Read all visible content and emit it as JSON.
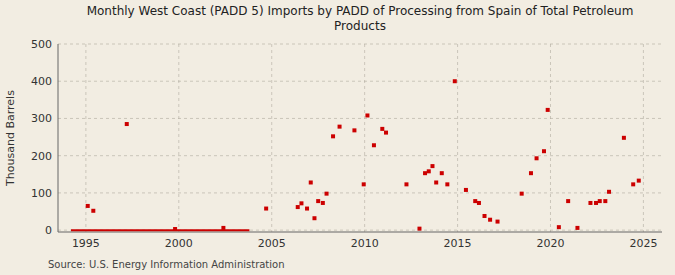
{
  "chart_data": {
    "type": "scatter",
    "title": "Monthly West Coast (PADD 5) Imports by PADD of Processing from Spain of Total Petroleum\nProducts",
    "ylabel": "Thousand Barrels",
    "annotations": [
      "Source: U.S. Energy Information Administration"
    ],
    "xlim": [
      1993.5,
      2026
    ],
    "ylim": [
      -5,
      500
    ],
    "xticks": [
      1995,
      2000,
      2005,
      2010,
      2015,
      2020,
      2025
    ],
    "yticks": [
      0,
      100,
      200,
      300,
      400,
      500
    ],
    "grid": true,
    "series": [
      {
        "type": "scatter",
        "marker": "square",
        "color": "#cc0000",
        "x": [
          1995.1,
          1995.4,
          1997.2,
          1999.8,
          2002.4,
          2004.7,
          2006.4,
          2006.6,
          2006.9,
          2007.1,
          2007.3,
          2007.5,
          2007.75,
          2007.95,
          2008.3,
          2008.65,
          2009.45,
          2009.95,
          2010.15,
          2010.5,
          2010.95,
          2011.15,
          2012.25,
          2012.95,
          2013.25,
          2013.45,
          2013.65,
          2013.85,
          2014.15,
          2014.45,
          2014.85,
          2015.45,
          2015.95,
          2016.15,
          2016.45,
          2016.75,
          2017.15,
          2018.45,
          2018.95,
          2019.25,
          2019.65,
          2019.85,
          2020.45,
          2020.95,
          2021.45,
          2022.15,
          2022.45,
          2022.65,
          2022.95,
          2023.15,
          2023.95,
          2024.45,
          2024.75
        ],
        "values": [
          65,
          52,
          285,
          3,
          6,
          58,
          62,
          72,
          58,
          128,
          32,
          78,
          73,
          98,
          252,
          278,
          268,
          123,
          308,
          228,
          272,
          262,
          123,
          4,
          153,
          158,
          172,
          128,
          153,
          123,
          400,
          108,
          78,
          73,
          38,
          28,
          23,
          98,
          153,
          193,
          212,
          323,
          8,
          78,
          6,
          73,
          73,
          78,
          78,
          103,
          248,
          123,
          133
        ]
      },
      {
        "type": "line",
        "color": "#cc0000",
        "x": [
          1994.2,
          2003.8
        ],
        "values": [
          0,
          0
        ]
      }
    ]
  }
}
